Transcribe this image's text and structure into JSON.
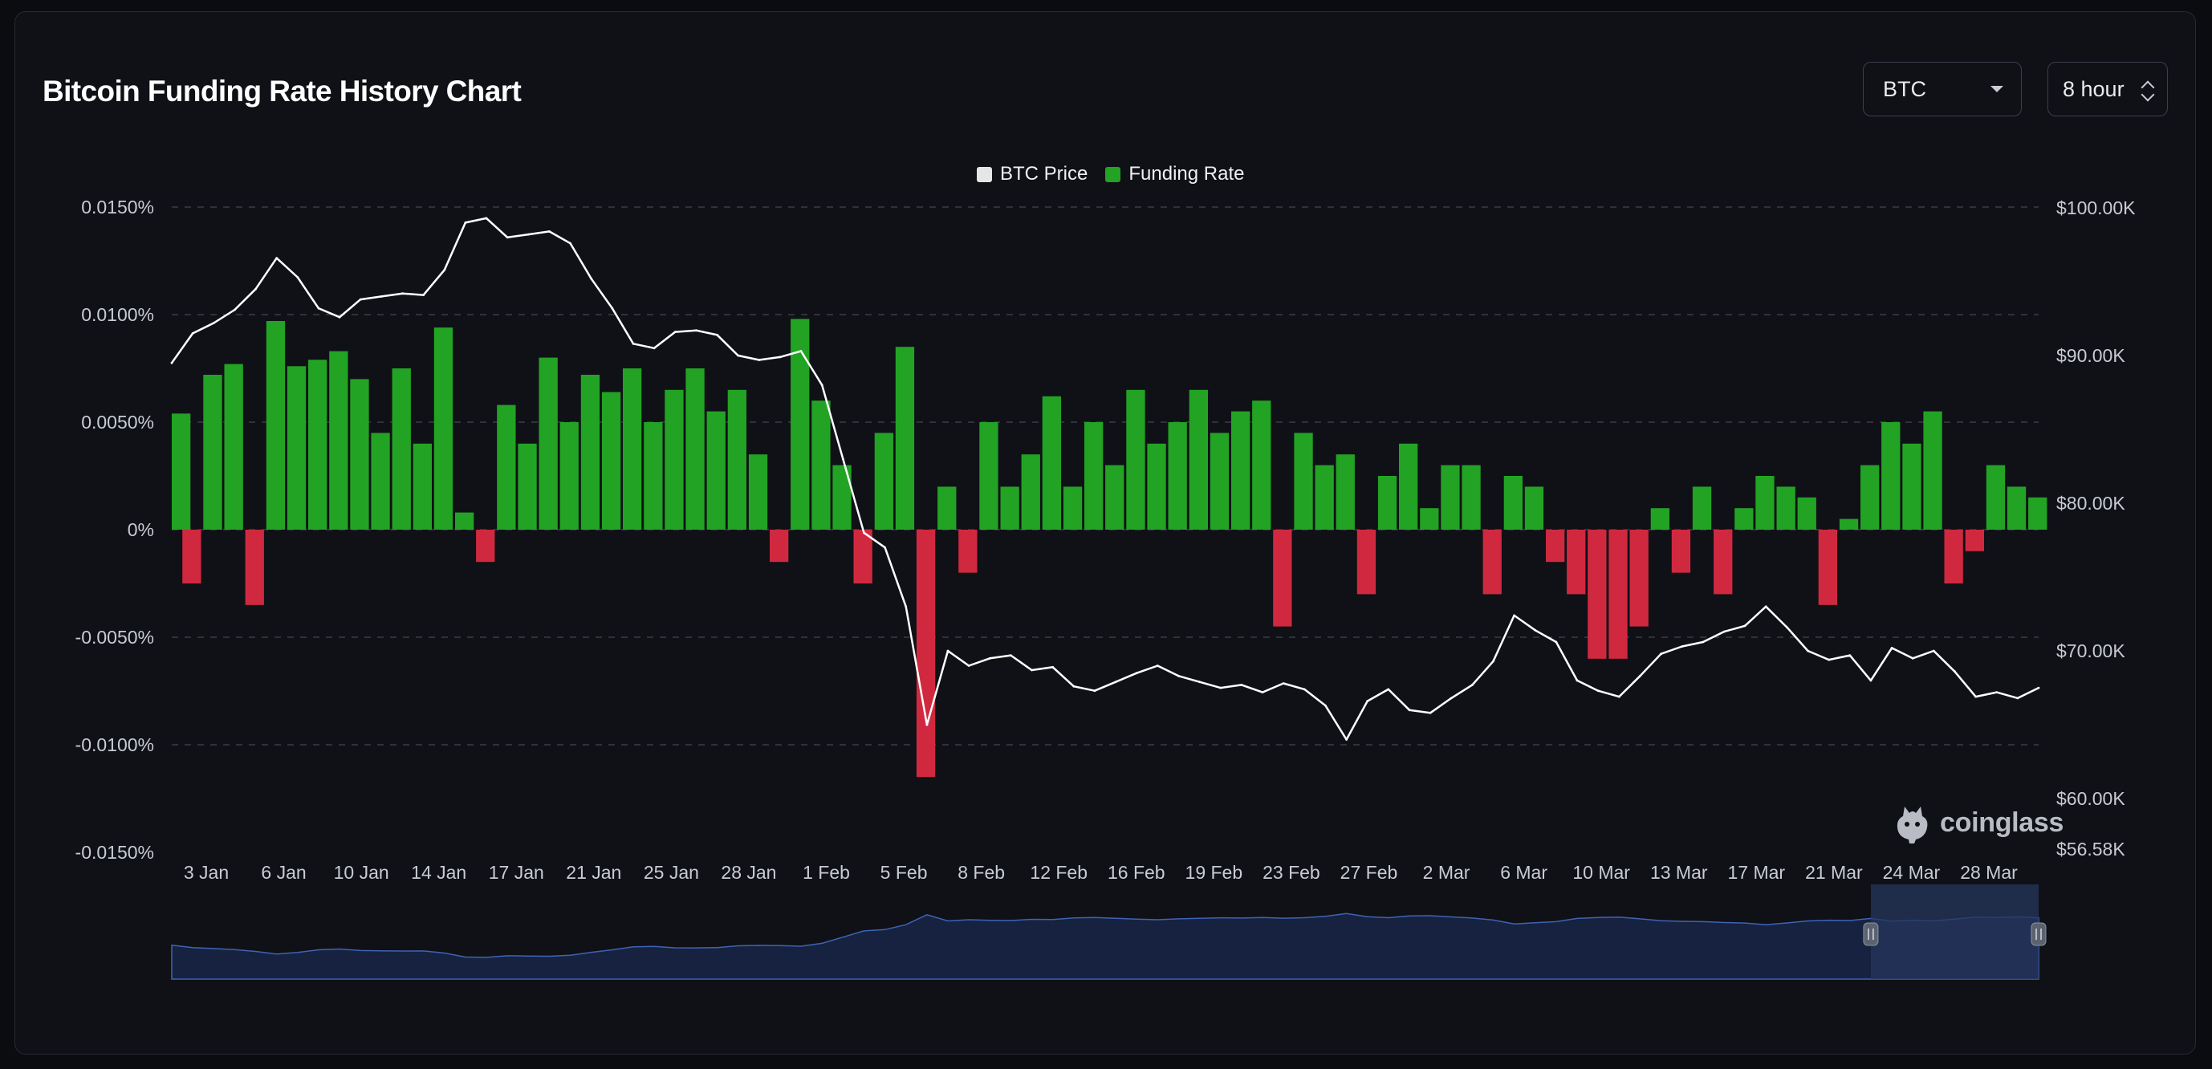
{
  "title": "Bitcoin Funding Rate History Chart",
  "controls": {
    "coin": "BTC",
    "interval": "8 hour"
  },
  "watermark": "coinglass",
  "colors": {
    "price_line": "#ffffff",
    "positive": "#22a323",
    "negative": "#d0293f",
    "grid": "#3a3e47",
    "navigator_fill": "#16223f",
    "navigator_line": "#3f63b5",
    "navigator_selection": "#26365c"
  },
  "chart_data": {
    "type": "area",
    "title": "Bitcoin Funding Rate History Chart",
    "legend": [
      {
        "name": "BTC Price",
        "color": "#e6e6e6"
      },
      {
        "name": "Funding Rate",
        "color": "#22a323"
      }
    ],
    "legend_position": "top-center",
    "grid": true,
    "x_ticks": [
      "3 Jan",
      "6 Jan",
      "10 Jan",
      "14 Jan",
      "17 Jan",
      "21 Jan",
      "25 Jan",
      "28 Jan",
      "1 Feb",
      "5 Feb",
      "8 Feb",
      "12 Feb",
      "16 Feb",
      "19 Feb",
      "23 Feb",
      "27 Feb",
      "2 Mar",
      "6 Mar",
      "10 Mar",
      "13 Mar",
      "17 Mar",
      "21 Mar",
      "24 Mar",
      "28 Mar"
    ],
    "x_range": [
      "2025-01-01",
      "2025-03-31"
    ],
    "y_left": {
      "label": "",
      "ticks": [
        "0.0150%",
        "0.0100%",
        "0.0050%",
        "0%",
        "-0.0050%",
        "-0.0100%",
        "-0.0150%"
      ],
      "range_pct": [
        -0.015,
        0.015
      ]
    },
    "y_right": {
      "label": "",
      "ticks": [
        "$100.00K",
        "$90.00K",
        "$80.00K",
        "$70.00K",
        "$60.00K",
        "$56.58K"
      ],
      "range_usd": [
        56580,
        100000
      ]
    },
    "series": [
      {
        "name": "BTC Price",
        "type": "line",
        "unit": "USD",
        "points": [
          [
            "2025-01-01",
            89500
          ],
          [
            "2025-01-02",
            91500
          ],
          [
            "2025-01-03",
            92200
          ],
          [
            "2025-01-04",
            93100
          ],
          [
            "2025-01-05",
            94500
          ],
          [
            "2025-01-06",
            96600
          ],
          [
            "2025-01-07",
            95300
          ],
          [
            "2025-01-08",
            93200
          ],
          [
            "2025-01-09",
            92600
          ],
          [
            "2025-01-10",
            93800
          ],
          [
            "2025-01-11",
            94000
          ],
          [
            "2025-01-12",
            94200
          ],
          [
            "2025-01-13",
            94100
          ],
          [
            "2025-01-14",
            95800
          ],
          [
            "2025-01-15",
            99000
          ],
          [
            "2025-01-16",
            99300
          ],
          [
            "2025-01-17",
            98000
          ],
          [
            "2025-01-18",
            98200
          ],
          [
            "2025-01-19",
            98400
          ],
          [
            "2025-01-20",
            97600
          ],
          [
            "2025-01-21",
            95200
          ],
          [
            "2025-01-22",
            93200
          ],
          [
            "2025-01-23",
            90800
          ],
          [
            "2025-01-24",
            90500
          ],
          [
            "2025-01-25",
            91600
          ],
          [
            "2025-01-26",
            91700
          ],
          [
            "2025-01-27",
            91400
          ],
          [
            "2025-01-28",
            90000
          ],
          [
            "2025-01-29",
            89700
          ],
          [
            "2025-01-30",
            89900
          ],
          [
            "2025-01-31",
            90300
          ],
          [
            "2025-02-01",
            88000
          ],
          [
            "2025-02-02",
            83000
          ],
          [
            "2025-02-03",
            78000
          ],
          [
            "2025-02-04",
            77000
          ],
          [
            "2025-02-05",
            73000
          ],
          [
            "2025-02-06",
            65000
          ],
          [
            "2025-02-07",
            70000
          ],
          [
            "2025-02-08",
            69000
          ],
          [
            "2025-02-09",
            69500
          ],
          [
            "2025-02-10",
            69700
          ],
          [
            "2025-02-11",
            68700
          ],
          [
            "2025-02-12",
            68900
          ],
          [
            "2025-02-13",
            67600
          ],
          [
            "2025-02-14",
            67300
          ],
          [
            "2025-02-15",
            67900
          ],
          [
            "2025-02-16",
            68500
          ],
          [
            "2025-02-17",
            69000
          ],
          [
            "2025-02-18",
            68300
          ],
          [
            "2025-02-19",
            67900
          ],
          [
            "2025-02-20",
            67500
          ],
          [
            "2025-02-21",
            67700
          ],
          [
            "2025-02-22",
            67200
          ],
          [
            "2025-02-23",
            67800
          ],
          [
            "2025-02-24",
            67400
          ],
          [
            "2025-02-25",
            66300
          ],
          [
            "2025-02-26",
            64000
          ],
          [
            "2025-02-27",
            66600
          ],
          [
            "2025-02-28",
            67400
          ],
          [
            "2025-03-01",
            66000
          ],
          [
            "2025-03-02",
            65800
          ],
          [
            "2025-03-03",
            66800
          ],
          [
            "2025-03-04",
            67700
          ],
          [
            "2025-03-05",
            69300
          ],
          [
            "2025-03-06",
            72400
          ],
          [
            "2025-03-07",
            71400
          ],
          [
            "2025-03-08",
            70600
          ],
          [
            "2025-03-09",
            68000
          ],
          [
            "2025-03-10",
            67300
          ],
          [
            "2025-03-11",
            66900
          ],
          [
            "2025-03-12",
            68300
          ],
          [
            "2025-03-13",
            69800
          ],
          [
            "2025-03-14",
            70300
          ],
          [
            "2025-03-15",
            70600
          ],
          [
            "2025-03-16",
            71300
          ],
          [
            "2025-03-17",
            71700
          ],
          [
            "2025-03-18",
            73000
          ],
          [
            "2025-03-19",
            71600
          ],
          [
            "2025-03-20",
            70000
          ],
          [
            "2025-03-21",
            69400
          ],
          [
            "2025-03-22",
            69700
          ],
          [
            "2025-03-23",
            68000
          ],
          [
            "2025-03-24",
            70200
          ],
          [
            "2025-03-25",
            69500
          ],
          [
            "2025-03-26",
            70000
          ],
          [
            "2025-03-27",
            68600
          ],
          [
            "2025-03-28",
            66900
          ],
          [
            "2025-03-29",
            67200
          ],
          [
            "2025-03-30",
            66800
          ],
          [
            "2025-03-31",
            67500
          ]
        ]
      },
      {
        "name": "Funding Rate",
        "type": "area",
        "unit": "%",
        "points": [
          [
            "2025-01-01",
            0.0054
          ],
          [
            "2025-01-02",
            -0.0025
          ],
          [
            "2025-01-03",
            0.0072
          ],
          [
            "2025-01-04",
            0.0077
          ],
          [
            "2025-01-05",
            -0.0035
          ],
          [
            "2025-01-06",
            0.0097
          ],
          [
            "2025-01-07",
            0.0076
          ],
          [
            "2025-01-08",
            0.0079
          ],
          [
            "2025-01-09",
            0.0083
          ],
          [
            "2025-01-10",
            0.007
          ],
          [
            "2025-01-11",
            0.0045
          ],
          [
            "2025-01-12",
            0.0075
          ],
          [
            "2025-01-13",
            0.004
          ],
          [
            "2025-01-14",
            0.0094
          ],
          [
            "2025-01-15",
            0.0008
          ],
          [
            "2025-01-16",
            -0.0015
          ],
          [
            "2025-01-17",
            0.0058
          ],
          [
            "2025-01-18",
            0.004
          ],
          [
            "2025-01-19",
            0.008
          ],
          [
            "2025-01-20",
            0.005
          ],
          [
            "2025-01-21",
            0.0072
          ],
          [
            "2025-01-22",
            0.0064
          ],
          [
            "2025-01-23",
            0.0075
          ],
          [
            "2025-01-24",
            0.005
          ],
          [
            "2025-01-25",
            0.0065
          ],
          [
            "2025-01-26",
            0.0075
          ],
          [
            "2025-01-27",
            0.0055
          ],
          [
            "2025-01-28",
            0.0065
          ],
          [
            "2025-01-29",
            0.0035
          ],
          [
            "2025-01-30",
            -0.0015
          ],
          [
            "2025-01-31",
            0.0098
          ],
          [
            "2025-02-01",
            0.006
          ],
          [
            "2025-02-02",
            0.003
          ],
          [
            "2025-02-03",
            -0.0025
          ],
          [
            "2025-02-04",
            0.0045
          ],
          [
            "2025-02-05",
            0.0085
          ],
          [
            "2025-02-06",
            -0.0115
          ],
          [
            "2025-02-07",
            0.002
          ],
          [
            "2025-02-08",
            -0.002
          ],
          [
            "2025-02-09",
            0.005
          ],
          [
            "2025-02-10",
            0.002
          ],
          [
            "2025-02-11",
            0.0035
          ],
          [
            "2025-02-12",
            0.0062
          ],
          [
            "2025-02-13",
            0.002
          ],
          [
            "2025-02-14",
            0.005
          ],
          [
            "2025-02-15",
            0.003
          ],
          [
            "2025-02-16",
            0.0065
          ],
          [
            "2025-02-17",
            0.004
          ],
          [
            "2025-02-18",
            0.005
          ],
          [
            "2025-02-19",
            0.0065
          ],
          [
            "2025-02-20",
            0.0045
          ],
          [
            "2025-02-21",
            0.0055
          ],
          [
            "2025-02-22",
            0.006
          ],
          [
            "2025-02-23",
            -0.0045
          ],
          [
            "2025-02-24",
            0.0045
          ],
          [
            "2025-02-25",
            0.003
          ],
          [
            "2025-02-26",
            0.0035
          ],
          [
            "2025-02-27",
            -0.003
          ],
          [
            "2025-02-28",
            0.0025
          ],
          [
            "2025-03-01",
            0.004
          ],
          [
            "2025-03-02",
            0.001
          ],
          [
            "2025-03-03",
            0.003
          ],
          [
            "2025-03-04",
            0.003
          ],
          [
            "2025-03-05",
            -0.003
          ],
          [
            "2025-03-06",
            0.0025
          ],
          [
            "2025-03-07",
            0.002
          ],
          [
            "2025-03-08",
            -0.0015
          ],
          [
            "2025-03-09",
            -0.003
          ],
          [
            "2025-03-10",
            -0.006
          ],
          [
            "2025-03-11",
            -0.006
          ],
          [
            "2025-03-12",
            -0.0045
          ],
          [
            "2025-03-13",
            0.001
          ],
          [
            "2025-03-14",
            -0.002
          ],
          [
            "2025-03-15",
            0.002
          ],
          [
            "2025-03-16",
            -0.003
          ],
          [
            "2025-03-17",
            0.001
          ],
          [
            "2025-03-18",
            0.0025
          ],
          [
            "2025-03-19",
            0.002
          ],
          [
            "2025-03-20",
            0.0015
          ],
          [
            "2025-03-21",
            -0.0035
          ],
          [
            "2025-03-22",
            0.0005
          ],
          [
            "2025-03-23",
            0.003
          ],
          [
            "2025-03-24",
            0.005
          ],
          [
            "2025-03-25",
            0.004
          ],
          [
            "2025-03-26",
            0.0055
          ],
          [
            "2025-03-27",
            -0.0025
          ],
          [
            "2025-03-28",
            -0.001
          ],
          [
            "2025-03-29",
            0.003
          ],
          [
            "2025-03-30",
            0.002
          ],
          [
            "2025-03-31",
            0.0015
          ]
        ]
      }
    ],
    "navigator": {
      "selected_range": [
        "2025-03-23",
        "2025-03-31"
      ]
    }
  }
}
